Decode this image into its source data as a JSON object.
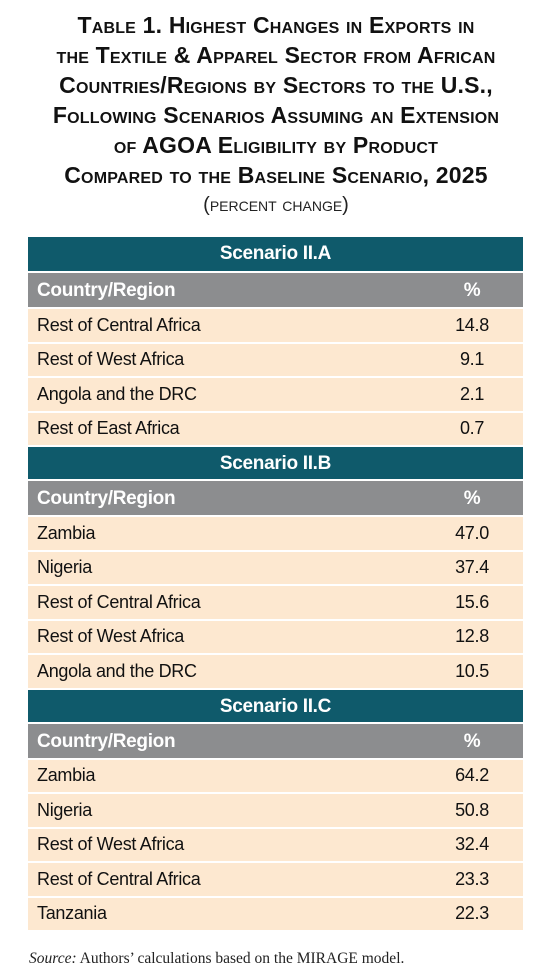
{
  "title": {
    "lines": [
      "Table 1. Highest Changes in Exports in",
      "the Textile & Apparel Sector from African",
      "Countries/Regions by Sectors to the U.S.,",
      "Following Scenarios Assuming an Extension",
      "of AGOA Eligibility by Product",
      "Compared to the Baseline Scenario, 2025"
    ],
    "subtitle": "(percent change)"
  },
  "columns": {
    "country": "Country/Region",
    "value": "%"
  },
  "sections": [
    {
      "name": "Scenario II.A",
      "rows": [
        {
          "country": "Rest of Central Africa",
          "value": "14.8"
        },
        {
          "country": "Rest of West Africa",
          "value": "9.1"
        },
        {
          "country": "Angola and the DRC",
          "value": "2.1"
        },
        {
          "country": "Rest of East Africa",
          "value": "0.7"
        }
      ]
    },
    {
      "name": "Scenario II.B",
      "rows": [
        {
          "country": "Zambia",
          "value": "47.0"
        },
        {
          "country": "Nigeria",
          "value": "37.4"
        },
        {
          "country": "Rest of Central Africa",
          "value": "15.6"
        },
        {
          "country": "Rest of West Africa",
          "value": "12.8"
        },
        {
          "country": "Angola and the DRC",
          "value": "10.5"
        }
      ]
    },
    {
      "name": "Scenario II.C",
      "rows": [
        {
          "country": "Zambia",
          "value": "64.2"
        },
        {
          "country": "Nigeria",
          "value": "50.8"
        },
        {
          "country": "Rest of West Africa",
          "value": "32.4"
        },
        {
          "country": "Rest of Central Africa",
          "value": "23.3"
        },
        {
          "country": "Tanzania",
          "value": "22.3"
        }
      ]
    }
  ],
  "source": {
    "label": "Source:",
    "text": " Authors’ calculations based on the MIRAGE model."
  },
  "colors": {
    "scenario_header": "#0f5a6b",
    "column_header": "#8c8d8f",
    "row_background": "#fde8d0"
  }
}
